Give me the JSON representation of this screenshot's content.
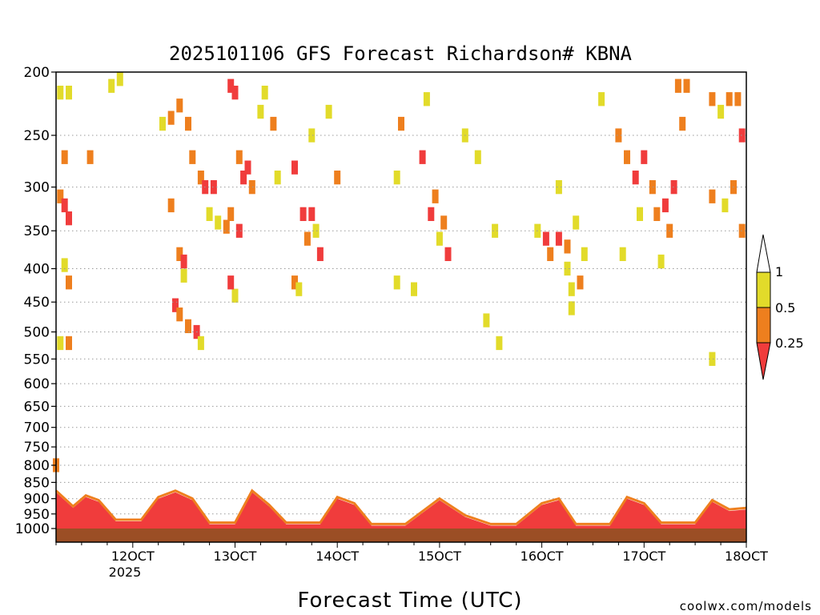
{
  "chart_data": {
    "type": "heatmap",
    "title": "2025101106 GFS Forecast Richardson# KBNA",
    "xlabel": "Forecast Time (UTC)",
    "ylabel": "",
    "credit": "coolwx.com/models",
    "x_ticks": [
      "12OCT",
      "13OCT",
      "14OCT",
      "15OCT",
      "16OCT",
      "17OCT",
      "18OCT"
    ],
    "x_year": "2025",
    "xlim_hours": [
      6,
      168
    ],
    "y_ticks": [
      "200",
      "250",
      "300",
      "350",
      "400",
      "450",
      "500",
      "550",
      "600",
      "650",
      "700",
      "750",
      "800",
      "850",
      "900",
      "950",
      "1000"
    ],
    "y_scale": "log-pressure (hPa), inverted",
    "grid": "dotted horizontal",
    "legend": {
      "placement": "right",
      "labels": [
        "1",
        "0.5",
        "0.25"
      ],
      "categories": [
        {
          "label": "< 0.25",
          "color": "#f03c3c"
        },
        {
          "label": "0.25 - 0.5",
          "color": "#ee7f1e"
        },
        {
          "label": "0.5 - 1",
          "color": "#e2db2a"
        },
        {
          "label": "> 1",
          "color": "#ffffff"
        }
      ]
    },
    "ground_color": "#9b4e25",
    "colors": {
      "low": "#f03c3c",
      "mid": "#ee7f1e",
      "high": "#e2db2a"
    },
    "cells": [
      {
        "t": 7,
        "p": 215,
        "c": "high"
      },
      {
        "t": 9,
        "p": 215,
        "c": "high"
      },
      {
        "t": 19,
        "p": 210,
        "c": "high"
      },
      {
        "t": 21,
        "p": 205,
        "c": "high"
      },
      {
        "t": 8,
        "p": 270,
        "c": "mid"
      },
      {
        "t": 14,
        "p": 270,
        "c": "mid"
      },
      {
        "t": 7,
        "p": 310,
        "c": "mid"
      },
      {
        "t": 8,
        "p": 320,
        "c": "low"
      },
      {
        "t": 9,
        "p": 335,
        "c": "low"
      },
      {
        "t": 8,
        "p": 395,
        "c": "high"
      },
      {
        "t": 9,
        "p": 420,
        "c": "mid"
      },
      {
        "t": 9,
        "p": 520,
        "c": "mid"
      },
      {
        "t": 7,
        "p": 520,
        "c": "high"
      },
      {
        "t": 6,
        "p": 800,
        "c": "mid"
      },
      {
        "t": 31,
        "p": 240,
        "c": "high"
      },
      {
        "t": 33,
        "p": 235,
        "c": "mid"
      },
      {
        "t": 35,
        "p": 225,
        "c": "mid"
      },
      {
        "t": 37,
        "p": 240,
        "c": "mid"
      },
      {
        "t": 38,
        "p": 270,
        "c": "mid"
      },
      {
        "t": 40,
        "p": 290,
        "c": "mid"
      },
      {
        "t": 41,
        "p": 300,
        "c": "low"
      },
      {
        "t": 43,
        "p": 300,
        "c": "low"
      },
      {
        "t": 42,
        "p": 330,
        "c": "high"
      },
      {
        "t": 44,
        "p": 340,
        "c": "high"
      },
      {
        "t": 35,
        "p": 380,
        "c": "mid"
      },
      {
        "t": 36,
        "p": 390,
        "c": "low"
      },
      {
        "t": 36,
        "p": 410,
        "c": "high"
      },
      {
        "t": 34,
        "p": 455,
        "c": "low"
      },
      {
        "t": 35,
        "p": 470,
        "c": "mid"
      },
      {
        "t": 37,
        "p": 490,
        "c": "mid"
      },
      {
        "t": 39,
        "p": 500,
        "c": "low"
      },
      {
        "t": 40,
        "p": 520,
        "c": "high"
      },
      {
        "t": 33,
        "p": 320,
        "c": "mid"
      },
      {
        "t": 47,
        "p": 210,
        "c": "low"
      },
      {
        "t": 48,
        "p": 215,
        "c": "low"
      },
      {
        "t": 49,
        "p": 270,
        "c": "mid"
      },
      {
        "t": 50,
        "p": 290,
        "c": "low"
      },
      {
        "t": 51,
        "p": 280,
        "c": "low"
      },
      {
        "t": 52,
        "p": 300,
        "c": "mid"
      },
      {
        "t": 54,
        "p": 230,
        "c": "high"
      },
      {
        "t": 55,
        "p": 215,
        "c": "high"
      },
      {
        "t": 57,
        "p": 240,
        "c": "mid"
      },
      {
        "t": 58,
        "p": 290,
        "c": "high"
      },
      {
        "t": 47,
        "p": 330,
        "c": "mid"
      },
      {
        "t": 46,
        "p": 345,
        "c": "mid"
      },
      {
        "t": 49,
        "p": 350,
        "c": "low"
      },
      {
        "t": 48,
        "p": 440,
        "c": "high"
      },
      {
        "t": 47,
        "p": 420,
        "c": "low"
      },
      {
        "t": 62,
        "p": 280,
        "c": "low"
      },
      {
        "t": 64,
        "p": 330,
        "c": "low"
      },
      {
        "t": 66,
        "p": 330,
        "c": "low"
      },
      {
        "t": 65,
        "p": 360,
        "c": "mid"
      },
      {
        "t": 67,
        "p": 350,
        "c": "high"
      },
      {
        "t": 68,
        "p": 380,
        "c": "low"
      },
      {
        "t": 62,
        "p": 420,
        "c": "mid"
      },
      {
        "t": 63,
        "p": 430,
        "c": "high"
      },
      {
        "t": 66,
        "p": 250,
        "c": "high"
      },
      {
        "t": 70,
        "p": 230,
        "c": "high"
      },
      {
        "t": 72,
        "p": 290,
        "c": "mid"
      },
      {
        "t": 86,
        "p": 290,
        "c": "high"
      },
      {
        "t": 87,
        "p": 240,
        "c": "mid"
      },
      {
        "t": 93,
        "p": 220,
        "c": "high"
      },
      {
        "t": 92,
        "p": 270,
        "c": "low"
      },
      {
        "t": 94,
        "p": 330,
        "c": "low"
      },
      {
        "t": 95,
        "p": 310,
        "c": "mid"
      },
      {
        "t": 97,
        "p": 340,
        "c": "mid"
      },
      {
        "t": 96,
        "p": 360,
        "c": "high"
      },
      {
        "t": 98,
        "p": 380,
        "c": "low"
      },
      {
        "t": 86,
        "p": 420,
        "c": "high"
      },
      {
        "t": 90,
        "p": 430,
        "c": "high"
      },
      {
        "t": 102,
        "p": 250,
        "c": "high"
      },
      {
        "t": 105,
        "p": 270,
        "c": "high"
      },
      {
        "t": 109,
        "p": 350,
        "c": "high"
      },
      {
        "t": 107,
        "p": 480,
        "c": "high"
      },
      {
        "t": 110,
        "p": 520,
        "c": "high"
      },
      {
        "t": 119,
        "p": 350,
        "c": "high"
      },
      {
        "t": 121,
        "p": 360,
        "c": "low"
      },
      {
        "t": 122,
        "p": 380,
        "c": "mid"
      },
      {
        "t": 124,
        "p": 360,
        "c": "low"
      },
      {
        "t": 126,
        "p": 370,
        "c": "mid"
      },
      {
        "t": 128,
        "p": 340,
        "c": "high"
      },
      {
        "t": 130,
        "p": 380,
        "c": "high"
      },
      {
        "t": 129,
        "p": 420,
        "c": "mid"
      },
      {
        "t": 127,
        "p": 430,
        "c": "high"
      },
      {
        "t": 126,
        "p": 400,
        "c": "high"
      },
      {
        "t": 124,
        "p": 300,
        "c": "high"
      },
      {
        "t": 127,
        "p": 460,
        "c": "high"
      },
      {
        "t": 134,
        "p": 220,
        "c": "high"
      },
      {
        "t": 138,
        "p": 250,
        "c": "mid"
      },
      {
        "t": 140,
        "p": 270,
        "c": "mid"
      },
      {
        "t": 142,
        "p": 290,
        "c": "low"
      },
      {
        "t": 144,
        "p": 270,
        "c": "low"
      },
      {
        "t": 146,
        "p": 300,
        "c": "mid"
      },
      {
        "t": 147,
        "p": 330,
        "c": "mid"
      },
      {
        "t": 149,
        "p": 320,
        "c": "low"
      },
      {
        "t": 151,
        "p": 300,
        "c": "low"
      },
      {
        "t": 150,
        "p": 350,
        "c": "mid"
      },
      {
        "t": 152,
        "p": 210,
        "c": "mid"
      },
      {
        "t": 154,
        "p": 210,
        "c": "mid"
      },
      {
        "t": 153,
        "p": 240,
        "c": "mid"
      },
      {
        "t": 148,
        "p": 390,
        "c": "high"
      },
      {
        "t": 139,
        "p": 380,
        "c": "high"
      },
      {
        "t": 143,
        "p": 330,
        "c": "high"
      },
      {
        "t": 164,
        "p": 220,
        "c": "mid"
      },
      {
        "t": 166,
        "p": 220,
        "c": "mid"
      },
      {
        "t": 167,
        "p": 250,
        "c": "low"
      },
      {
        "t": 165,
        "p": 300,
        "c": "mid"
      },
      {
        "t": 167,
        "p": 350,
        "c": "mid"
      },
      {
        "t": 163,
        "p": 320,
        "c": "high"
      },
      {
        "t": 160,
        "p": 310,
        "c": "mid"
      },
      {
        "t": 162,
        "p": 230,
        "c": "high"
      },
      {
        "t": 160,
        "p": 550,
        "c": "high"
      },
      {
        "t": 160,
        "p": 220,
        "c": "mid"
      }
    ],
    "pbl": [
      {
        "t": 6,
        "top": 880
      },
      {
        "t": 10,
        "top": 930
      },
      {
        "t": 13,
        "top": 895
      },
      {
        "t": 16,
        "top": 910
      },
      {
        "t": 20,
        "top": 975
      },
      {
        "t": 26,
        "top": 975
      },
      {
        "t": 30,
        "top": 900
      },
      {
        "t": 34,
        "top": 880
      },
      {
        "t": 38,
        "top": 905
      },
      {
        "t": 42,
        "top": 985
      },
      {
        "t": 48,
        "top": 985
      },
      {
        "t": 52,
        "top": 880
      },
      {
        "t": 56,
        "top": 925
      },
      {
        "t": 60,
        "top": 985
      },
      {
        "t": 68,
        "top": 985
      },
      {
        "t": 72,
        "top": 900
      },
      {
        "t": 76,
        "top": 920
      },
      {
        "t": 80,
        "top": 990
      },
      {
        "t": 88,
        "top": 990
      },
      {
        "t": 96,
        "top": 905
      },
      {
        "t": 102,
        "top": 960
      },
      {
        "t": 108,
        "top": 990
      },
      {
        "t": 114,
        "top": 990
      },
      {
        "t": 120,
        "top": 920
      },
      {
        "t": 124,
        "top": 905
      },
      {
        "t": 128,
        "top": 990
      },
      {
        "t": 136,
        "top": 990
      },
      {
        "t": 140,
        "top": 900
      },
      {
        "t": 144,
        "top": 920
      },
      {
        "t": 148,
        "top": 985
      },
      {
        "t": 156,
        "top": 985
      },
      {
        "t": 160,
        "top": 910
      },
      {
        "t": 164,
        "top": 940
      },
      {
        "t": 168,
        "top": 935
      }
    ]
  }
}
